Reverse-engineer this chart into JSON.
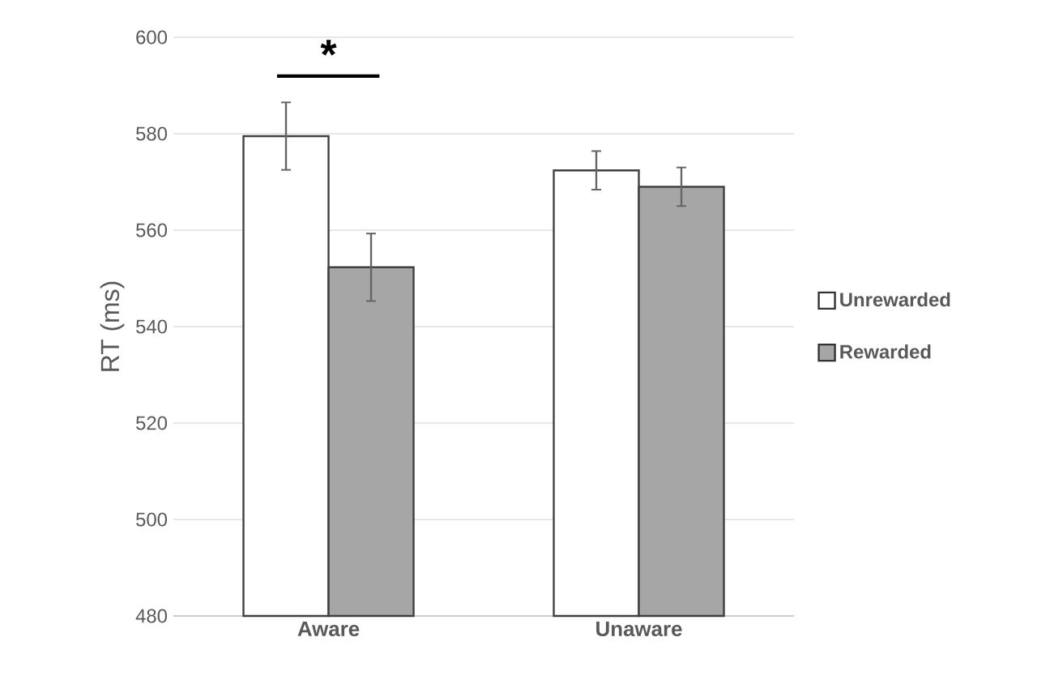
{
  "chart_data": {
    "type": "bar",
    "ylabel": "RT (ms)",
    "categories": [
      "Aware",
      "Unaware"
    ],
    "series": [
      {
        "name": "Unrewarded",
        "color": "#ffffff",
        "values": [
          579.5,
          572.4
        ],
        "errors": [
          7,
          4
        ]
      },
      {
        "name": "Rewarded",
        "color": "#a6a6a6",
        "values": [
          552.3,
          569
        ],
        "errors": [
          7,
          4
        ]
      }
    ],
    "ylim": [
      480,
      600
    ],
    "yticks": [
      480,
      500,
      520,
      540,
      560,
      580,
      600
    ],
    "grid": "y",
    "legend": "right",
    "annotations": [
      "*"
    ]
  }
}
